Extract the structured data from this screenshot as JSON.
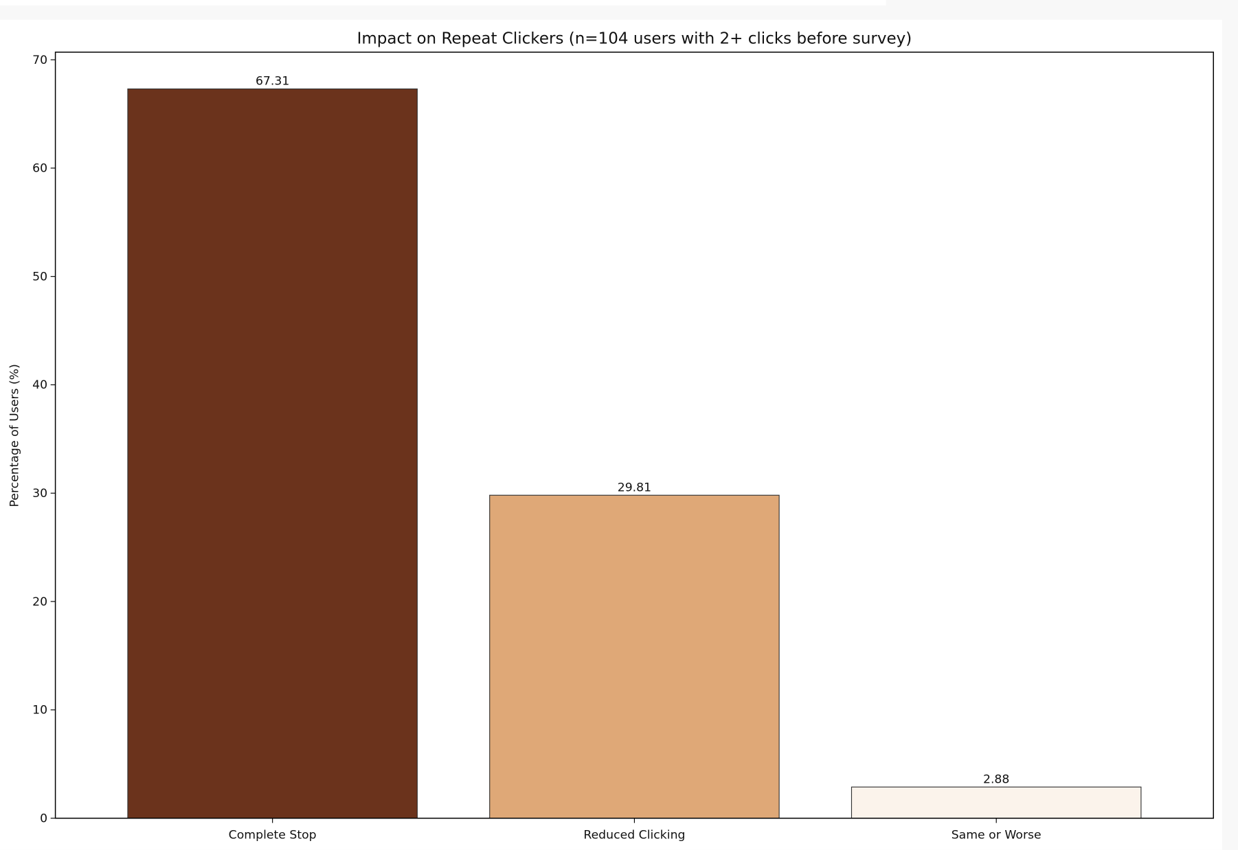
{
  "chart_data": {
    "type": "bar",
    "title": "Impact on Repeat Clickers (n=104 users with 2+ clicks before survey)",
    "xlabel": "",
    "ylabel": "Percentage of Users (%)",
    "categories": [
      "Complete Stop",
      "Reduced Clicking",
      "Same or Worse"
    ],
    "values": [
      67.31,
      29.81,
      2.88
    ],
    "data_labels": [
      "67.31",
      "29.81",
      "2.88"
    ],
    "colors": [
      "#6b331c",
      "#dfa877",
      "#fbf3eb"
    ],
    "edge_color": "#333333",
    "ylim": [
      0,
      70.7
    ],
    "yticks": [
      0,
      10,
      20,
      30,
      40,
      50,
      60,
      70
    ],
    "grid": false,
    "legend": "none"
  }
}
